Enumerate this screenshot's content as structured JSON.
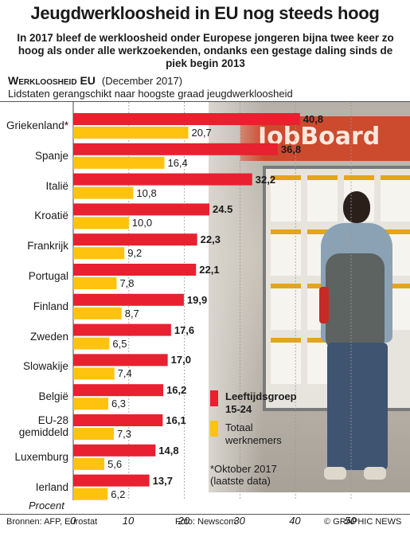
{
  "header": {
    "title": "Jeugdwerkloosheid in EU nog steeds hoog",
    "subtitle": "In 2017 bleef de werkloosheid onder Europese jongeren bijna twee keer zo hoog als onder alle werkzoekenden, ondanks een gestage daling sinds de piek begin 2013",
    "section_title": "Werkloosheid EU",
    "section_date": "(December 2017)",
    "section_note": "Lidstaten gerangschikt naar hoogste graad jeugdwerkloosheid"
  },
  "photo": {
    "sign_text": "JobBoard"
  },
  "chart_data": {
    "type": "bar",
    "orientation": "horizontal",
    "categories": [
      "Griekenland*",
      "Spanje",
      "Italië",
      "Kroatië",
      "Frankrijk",
      "Portugal",
      "Finland",
      "Zweden",
      "Slowakije",
      "België",
      "EU-28 gemiddeld",
      "Luxemburg",
      "Ierland"
    ],
    "series": [
      {
        "name": "Leeftijdsgroep 15-24",
        "color": "#e8202f",
        "values": [
          40.8,
          36.8,
          32.2,
          24.5,
          22.3,
          22.1,
          19.9,
          17.6,
          17.0,
          16.2,
          16.1,
          14.8,
          13.7
        ],
        "labels": [
          "40,8",
          "36,8",
          "32,2",
          "24.5",
          "22,3",
          "22,1",
          "19,9",
          "17,6",
          "17,0",
          "16,2",
          "16,1",
          "14,8",
          "13,7"
        ]
      },
      {
        "name": "Totaal werknemers",
        "color": "#ffc20e",
        "values": [
          20.7,
          16.4,
          10.8,
          10.0,
          9.2,
          7.8,
          8.7,
          6.5,
          7.4,
          6.3,
          7.3,
          5.6,
          6.2
        ],
        "labels": [
          "20,7",
          "16,4",
          "10,8",
          "10,0",
          "9,2",
          "7,8",
          "8,7",
          "6,5",
          "7,4",
          "6,3",
          "7,3",
          "5,6",
          "6,2"
        ]
      }
    ],
    "xlim": [
      0,
      52
    ],
    "xticks": [
      0,
      10,
      20,
      30,
      40,
      50
    ],
    "xlabel": "Procent",
    "grid": true,
    "legend_position": "bottom-right"
  },
  "legend": {
    "youth_line1": "Leeftijdsgroep",
    "youth_line2": "15-24",
    "total_line1": "Totaal",
    "total_line2": "werknemers"
  },
  "footnote": {
    "line1": "*Oktober 2017",
    "line2": "(laatste data)"
  },
  "footer": {
    "sources": "Bronnen: AFP, Eurostat",
    "photo_credit": "Foto: Newscom",
    "copyright": "© GRAPHIC NEWS"
  }
}
